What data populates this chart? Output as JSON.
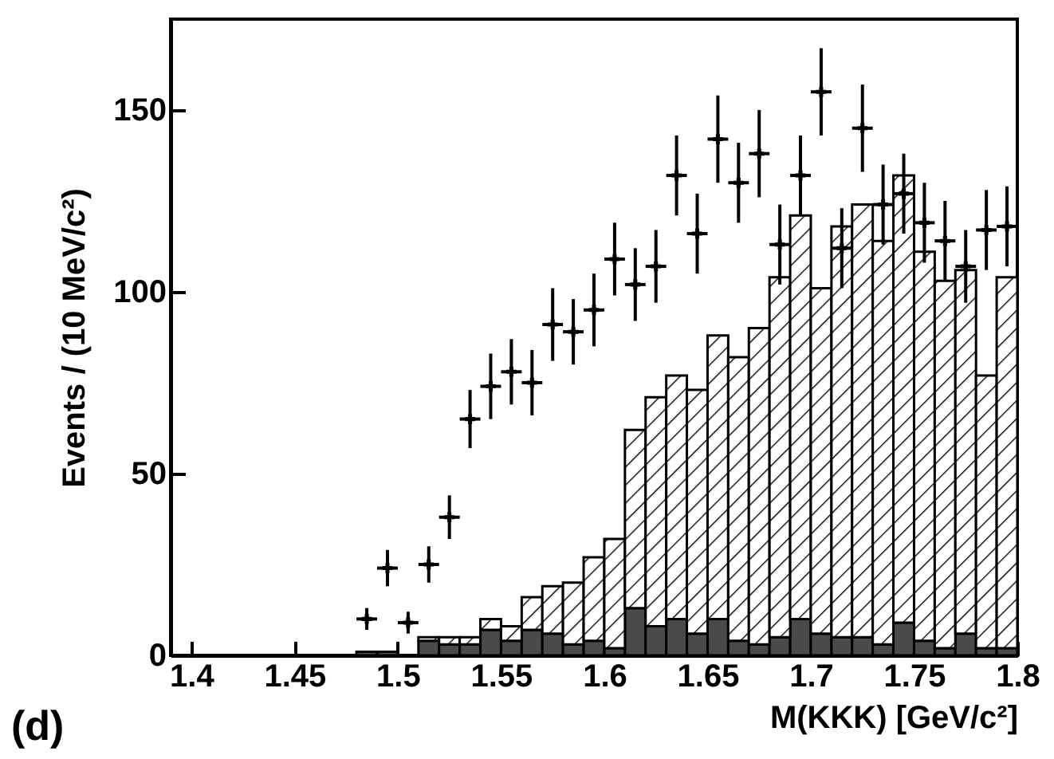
{
  "chart_data": {
    "type": "bar",
    "xlabel": "M(KKK) [GeV/c²]",
    "ylabel": "Events / (10 MeV/c²)",
    "annotations": [
      "(d)"
    ],
    "x": [
      1.485,
      1.495,
      1.505,
      1.515,
      1.525,
      1.535,
      1.545,
      1.555,
      1.565,
      1.575,
      1.585,
      1.595,
      1.605,
      1.615,
      1.625,
      1.635,
      1.645,
      1.655,
      1.665,
      1.675,
      1.685,
      1.695,
      1.705,
      1.715,
      1.725,
      1.735,
      1.745,
      1.755,
      1.765,
      1.775,
      1.785,
      1.795
    ],
    "xlim": [
      1.39,
      1.8
    ],
    "xticks": [
      1.4,
      1.45,
      1.5,
      1.55,
      1.6,
      1.65,
      1.7,
      1.75,
      1.8
    ],
    "ylim": [
      0,
      175
    ],
    "yticks": [
      0,
      50,
      100,
      150
    ],
    "grid": false,
    "marker": "cross",
    "stacked": true,
    "series": [
      {
        "color": "#4a4a4a",
        "values": [
          1,
          1,
          0,
          4,
          3,
          3,
          7,
          4,
          7,
          6,
          3,
          4,
          2,
          13,
          8,
          10,
          6,
          10,
          4,
          3,
          5,
          10,
          6,
          5,
          5,
          3,
          9,
          4,
          2,
          6,
          2,
          2
        ]
      },
      {
        "color": "#000000",
        "values": [
          0,
          0,
          0,
          1,
          2,
          2,
          3,
          4,
          9,
          13,
          17,
          23,
          30,
          49,
          63,
          67,
          67,
          78,
          78,
          87,
          99,
          111,
          95,
          113,
          119,
          111,
          123,
          107,
          101,
          100,
          75,
          102
        ]
      },
      {
        "type": "scatter",
        "color": "#000000",
        "x": [
          1.485,
          1.495,
          1.505,
          1.515,
          1.525,
          1.535,
          1.545,
          1.555,
          1.565,
          1.575,
          1.585,
          1.595,
          1.605,
          1.615,
          1.625,
          1.635,
          1.645,
          1.655,
          1.665,
          1.675,
          1.685,
          1.695,
          1.705,
          1.715,
          1.725,
          1.735,
          1.745,
          1.755,
          1.765,
          1.775,
          1.785,
          1.795
        ],
        "values": [
          10,
          24,
          9,
          25,
          38,
          65,
          74,
          78,
          75,
          91,
          89,
          95,
          109,
          102,
          107,
          132,
          116,
          142,
          130,
          138,
          113,
          132,
          155,
          112,
          145,
          124,
          127,
          119,
          114,
          107,
          117,
          118
        ],
        "errors": [
          3,
          5,
          3,
          5,
          6,
          8,
          9,
          9,
          9,
          10,
          9,
          10,
          10,
          10,
          10,
          11,
          11,
          12,
          11,
          12,
          11,
          11,
          12,
          11,
          12,
          11,
          11,
          11,
          11,
          10,
          11,
          11
        ],
        "xerrors": [
          0.005,
          0.005,
          0.005,
          0.005,
          0.005,
          0.005,
          0.005,
          0.005,
          0.005,
          0.005,
          0.005,
          0.005,
          0.005,
          0.005,
          0.005,
          0.005,
          0.005,
          0.005,
          0.005,
          0.005,
          0.005,
          0.005,
          0.005,
          0.005,
          0.005,
          0.005,
          0.005,
          0.005,
          0.005,
          0.005,
          0.005,
          0.005
        ]
      }
    ]
  }
}
